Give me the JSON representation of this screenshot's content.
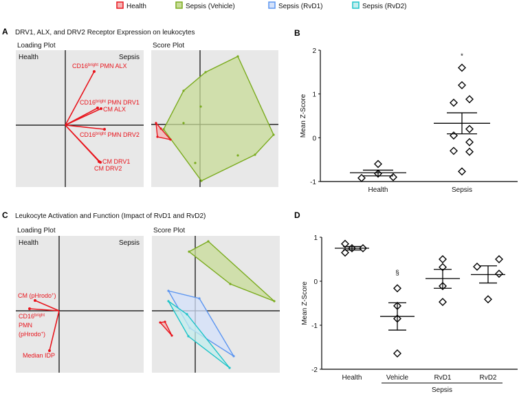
{
  "legend": [
    {
      "label": "Health",
      "color": "#e8141c",
      "fill": "#f5b3b3"
    },
    {
      "label": "Sepsis (Vehicle)",
      "color": "#7aab1e",
      "fill": "#c8dc98"
    },
    {
      "label": "Sepsis (RvD1)",
      "color": "#5b95f0",
      "fill": "#d4e2fb"
    },
    {
      "label": "Sepsis (RvD2)",
      "color": "#1cc3c8",
      "fill": "#c4eeee"
    }
  ],
  "panels": {
    "A": {
      "letter": "A",
      "title": "DRV1, ALX, and DRV2 Receptor Expression on leukocytes"
    },
    "B": {
      "letter": "B"
    },
    "C": {
      "letter": "C",
      "title": "Leukocyte Activation and Function (Impact of RvD1 and RvD2)"
    },
    "D": {
      "letter": "D"
    }
  },
  "chart_data": [
    {
      "id": "A-loading",
      "type": "scatter",
      "title": "Loading Plot",
      "quadrant_labels": {
        "left": "Health",
        "right": "Sepsis"
      },
      "vectors": [
        {
          "label": [
            "CD16",
            "bright",
            " PMN ALX"
          ],
          "x": 0.42,
          "y": 0.78
        },
        {
          "label": [
            "CD16",
            "bright",
            " PMN DRV1"
          ],
          "x": 0.47,
          "y": 0.25
        },
        {
          "label": [
            "CM ALX"
          ],
          "x": 0.52,
          "y": 0.24
        },
        {
          "label": [
            "CD16",
            "bright",
            " PMN DRV2"
          ],
          "x": 0.57,
          "y": -0.06
        },
        {
          "label": [
            "CM DRV1"
          ],
          "x": 0.51,
          "y": -0.54
        },
        {
          "label": [
            "CM DRV2"
          ],
          "x": 0.49,
          "y": -0.53
        }
      ]
    },
    {
      "id": "A-score",
      "type": "scatter",
      "title": "Score Plot",
      "groups": [
        {
          "name": "Sepsis (Vehicle)",
          "hull": [
            [
              0.55,
              0.99
            ],
            [
              1.07,
              -0.15
            ],
            [
              0.8,
              -0.44
            ],
            [
              0.02,
              -0.82
            ],
            [
              -0.53,
              -0.07
            ],
            [
              -0.24,
              0.49
            ],
            [
              0.08,
              0.76
            ]
          ],
          "interior": [
            [
              0.01,
              0.26
            ],
            [
              -0.24,
              0.02
            ],
            [
              0.55,
              -0.45
            ],
            [
              -0.07,
              -0.56
            ]
          ]
        },
        {
          "name": "Health",
          "hull": [
            [
              -0.64,
              0.02
            ],
            [
              -0.43,
              -0.22
            ],
            [
              -0.62,
              -0.18
            ]
          ],
          "interior": [
            [
              -0.57,
              -0.06
            ]
          ]
        }
      ]
    },
    {
      "id": "B",
      "type": "scatter",
      "ylabel": "Mean Z-Score",
      "ylim": [
        -1,
        2
      ],
      "yticks": [
        -1,
        0,
        1,
        2
      ],
      "categories": [
        "Health",
        "Sepsis"
      ],
      "points": [
        [
          -0.6,
          -0.82,
          -0.92,
          -0.9
        ],
        [
          1.6,
          1.2,
          0.8,
          0.88,
          0.2,
          0.05,
          -0.1,
          -0.3,
          -0.32,
          -0.77
        ]
      ],
      "mean": [
        -0.8,
        0.33
      ],
      "sem_upper": [
        -0.74,
        0.57
      ],
      "sem_lower": [
        -0.87,
        0.09
      ],
      "annotations": [
        {
          "category": "Sepsis",
          "text": "*",
          "y": 1.9
        }
      ]
    },
    {
      "id": "C-loading",
      "type": "scatter",
      "title": "Loading Plot",
      "quadrant_labels": {
        "left": "Health",
        "right": "Sepsis"
      },
      "vectors": [
        {
          "label": [
            "CM (pHrodo",
            "+",
            ")"
          ],
          "x": -0.35,
          "y": 0.15
        },
        {
          "label": [
            "CD16",
            "bright",
            ""
          ],
          "label2": "PMN",
          "label3": [
            "(pHrodo",
            "+",
            ")"
          ],
          "x": -0.43,
          "y": 0.03
        },
        {
          "label": [
            "Median IDP"
          ],
          "x": -0.14,
          "y": -0.58
        }
      ]
    },
    {
      "id": "C-score",
      "type": "scatter",
      "title": "Score Plot",
      "groups": [
        {
          "name": "Sepsis (Vehicle)",
          "hull": [
            [
              0.19,
              1.01
            ],
            [
              1.15,
              0.14
            ],
            [
              0.51,
              0.39
            ],
            [
              -0.09,
              0.86
            ]
          ]
        },
        {
          "name": "Sepsis (RvD1)",
          "hull": [
            [
              -0.39,
              0.29
            ],
            [
              0.06,
              0.18
            ],
            [
              0.56,
              -0.66
            ],
            [
              -0.08,
              -0.25
            ]
          ]
        },
        {
          "name": "Sepsis (RvD2)",
          "hull": [
            [
              -0.39,
              0.14
            ],
            [
              -0.12,
              -0.05
            ],
            [
              0.5,
              -0.83
            ],
            [
              -0.1,
              -0.37
            ]
          ]
        },
        {
          "name": "Health",
          "hull": [
            [
              -0.51,
              -0.17
            ],
            [
              -0.44,
              -0.16
            ],
            [
              -0.34,
              -0.36
            ]
          ]
        }
      ]
    },
    {
      "id": "D",
      "type": "scatter",
      "ylabel": "Mean Z-Score",
      "ylim": [
        -2,
        1
      ],
      "yticks": [
        -2,
        -1,
        0,
        1
      ],
      "categories": [
        "Health",
        "Vehicle",
        "RvD1",
        "RvD2"
      ],
      "group_label": "Sepsis",
      "points": [
        [
          0.85,
          0.65,
          0.75,
          0.75
        ],
        [
          -0.16,
          -0.56,
          -0.85,
          -1.64
        ],
        [
          0.5,
          0.32,
          -0.11,
          -0.47
        ],
        [
          0.33,
          0.5,
          0.17,
          -0.41
        ]
      ],
      "mean": [
        0.75,
        -0.8,
        0.06,
        0.15
      ],
      "sem_upper": [
        0.79,
        -0.49,
        0.27,
        0.35
      ],
      "sem_lower": [
        0.71,
        -1.11,
        -0.16,
        -0.04
      ],
      "annotations": [
        {
          "category": "Vehicle",
          "text": "§",
          "y": 0.22
        }
      ]
    }
  ]
}
